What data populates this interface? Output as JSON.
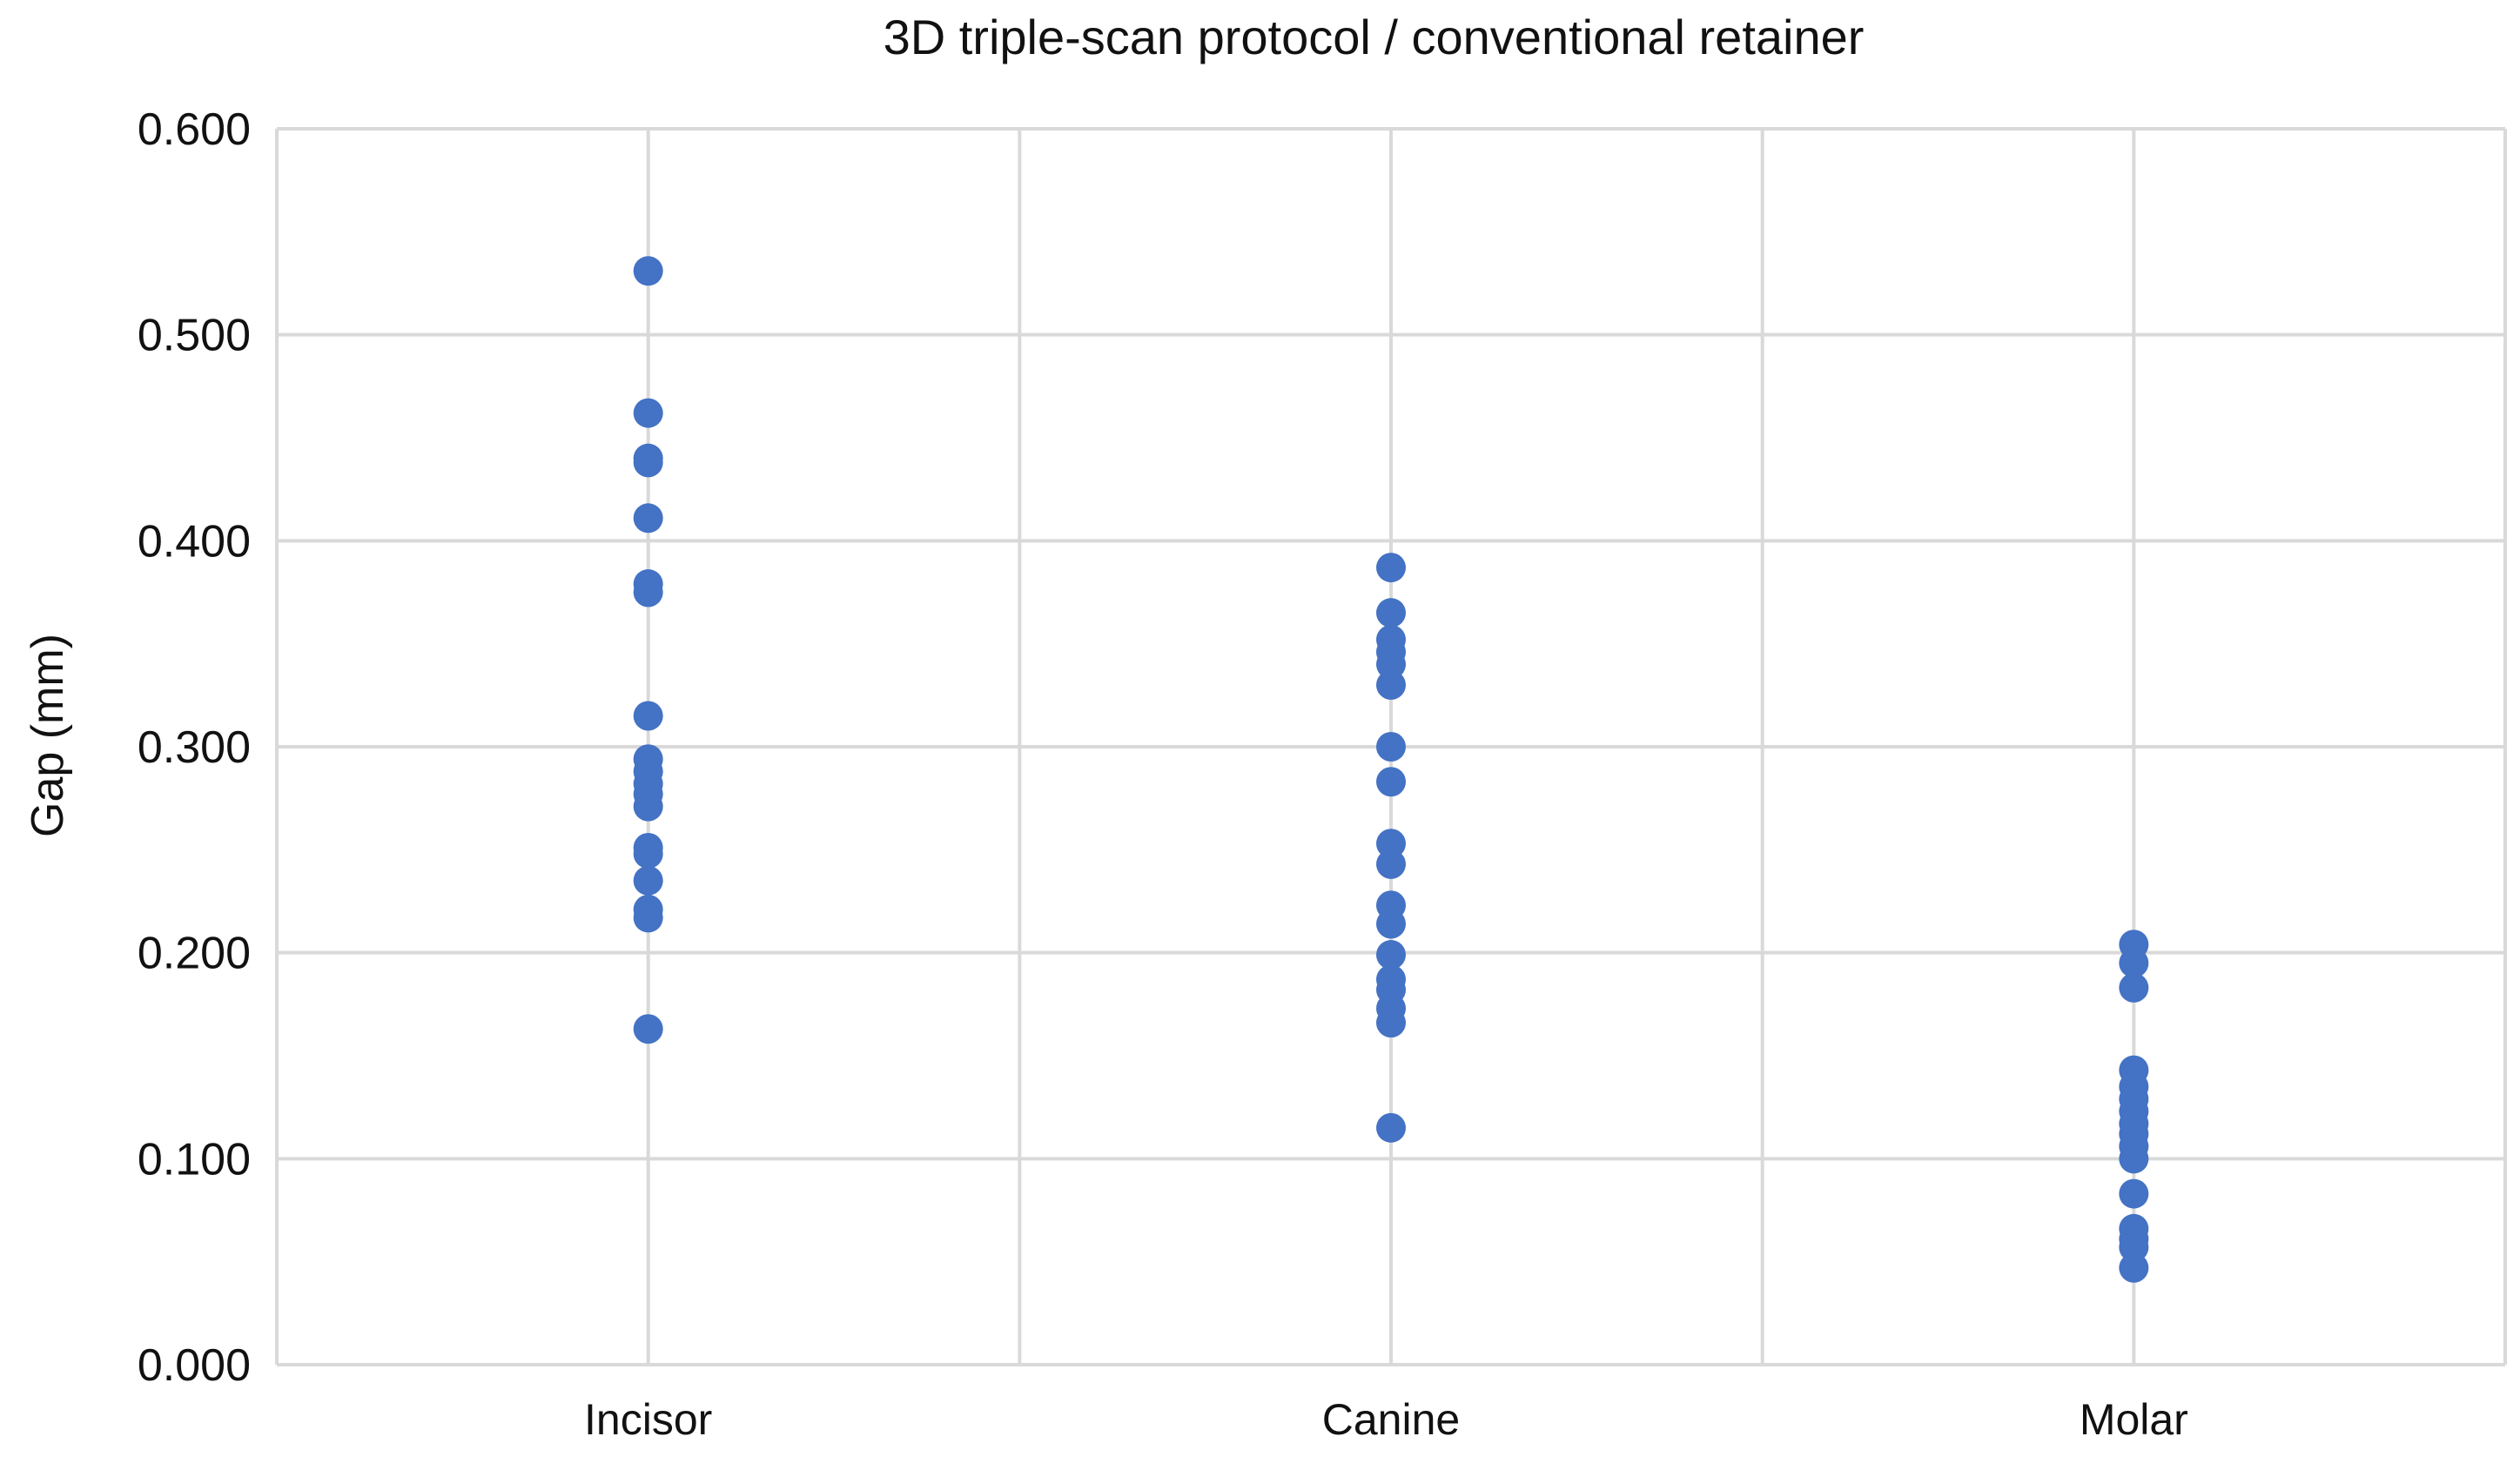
{
  "chart_data": {
    "type": "scatter",
    "title": "3D triple-scan protocol / conventional retainer",
    "xlabel": "",
    "ylabel": "Gap (mm)",
    "ylim": [
      0,
      0.6
    ],
    "yticks": [
      "0.000",
      "0.100",
      "0.200",
      "0.300",
      "0.400",
      "0.500",
      "0.600"
    ],
    "categories": [
      "Incisor",
      "Canine",
      "Molar"
    ],
    "grid": true,
    "series": [
      {
        "color": "#4472c4",
        "points": [
          {
            "category": "Incisor",
            "values": [
              0.531,
              0.462,
              0.44,
              0.438,
              0.411,
              0.379,
              0.375,
              0.315,
              0.294,
              0.288,
              0.282,
              0.277,
              0.271,
              0.251,
              0.248,
              0.235,
              0.221,
              0.217,
              0.163
            ]
          },
          {
            "category": "Canine",
            "values": [
              0.387,
              0.365,
              0.352,
              0.346,
              0.34,
              0.33,
              0.3,
              0.283,
              0.253,
              0.243,
              0.223,
              0.214,
              0.199,
              0.187,
              0.182,
              0.173,
              0.166,
              0.115
            ]
          },
          {
            "category": "Molar",
            "values": [
              0.204,
              0.195,
              0.183,
              0.143,
              0.135,
              0.129,
              0.123,
              0.117,
              0.112,
              0.106,
              0.1,
              0.083,
              0.066,
              0.061,
              0.057,
              0.047
            ]
          }
        ]
      }
    ]
  }
}
